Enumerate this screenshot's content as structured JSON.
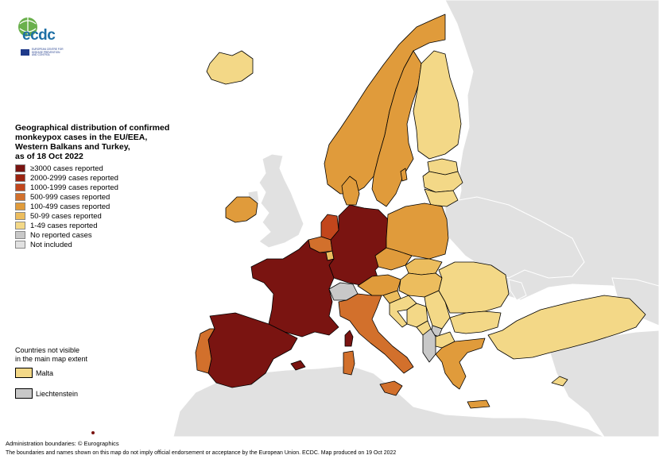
{
  "logo": {
    "text": "ecdc",
    "caption_lines": [
      "EUROPEAN CENTRE FOR",
      "DISEASE PREVENTION",
      "AND CONTROL"
    ]
  },
  "legend": {
    "title_lines": [
      "Geographical distribution of confirmed",
      "monkeypox cases in the EU/EEA,",
      "Western Balkans and Turkey,",
      "as of 18 Oct 2022"
    ],
    "items": [
      {
        "label": "≥3000 cases reported",
        "color": "#7a1411"
      },
      {
        "label": "2000-2999 cases reported",
        "color": "#9c2410"
      },
      {
        "label": "1000-1999 cases reported",
        "color": "#c2461c"
      },
      {
        "label": "500-999 cases reported",
        "color": "#d2702c"
      },
      {
        "label": "100-499 cases reported",
        "color": "#e09b3b"
      },
      {
        "label": "50-99 cases reported",
        "color": "#ecbd5e"
      },
      {
        "label": "1-49 cases reported",
        "color": "#f3d887"
      },
      {
        "label": "No reported cases",
        "color": "#c8c8c8"
      },
      {
        "label": "Not included",
        "color": "#e1e1e1"
      }
    ]
  },
  "not_visible": {
    "title_lines": [
      "Countries not visible",
      "in the main map extent"
    ],
    "items": [
      {
        "label": "Malta",
        "color": "#f3d887"
      },
      {
        "label": "Liechtenstein",
        "color": "#c8c8c8"
      }
    ]
  },
  "footer": {
    "admin": "Administration boundaries: © Eurographics",
    "disclaimer": "The boundaries and names shown on this map do not imply official endorsement or acceptance by the European Union. ECDC. Map produced on 19 Oct 2022"
  },
  "colors": {
    "ge3000": "#7a1411",
    "c2000": "#9c2410",
    "c1000": "#c2461c",
    "c500": "#d2702c",
    "c100": "#e09b3b",
    "c50": "#ecbd5e",
    "c1": "#f3d887",
    "none": "#c8c8c8",
    "not_included": "#e1e1e1"
  },
  "countries": [
    {
      "name": "Iceland",
      "class": "c1"
    },
    {
      "name": "Ireland",
      "class": "c100"
    },
    {
      "name": "Norway",
      "class": "c100"
    },
    {
      "name": "Sweden",
      "class": "c100"
    },
    {
      "name": "Finland",
      "class": "c1"
    },
    {
      "name": "Estonia",
      "class": "c1"
    },
    {
      "name": "Latvia",
      "class": "c1"
    },
    {
      "name": "Lithuania",
      "class": "c1"
    },
    {
      "name": "Denmark",
      "class": "c100"
    },
    {
      "name": "Netherlands",
      "class": "c1000"
    },
    {
      "name": "Belgium",
      "class": "c500"
    },
    {
      "name": "Luxembourg",
      "class": "c50"
    },
    {
      "name": "Germany",
      "class": "ge3000"
    },
    {
      "name": "France",
      "class": "ge3000"
    },
    {
      "name": "Spain",
      "class": "ge3000"
    },
    {
      "name": "Portugal",
      "class": "c500"
    },
    {
      "name": "Switzerland",
      "class": "none"
    },
    {
      "name": "Italy",
      "class": "c500"
    },
    {
      "name": "Austria",
      "class": "c100"
    },
    {
      "name": "Poland",
      "class": "c100"
    },
    {
      "name": "Czechia",
      "class": "c100"
    },
    {
      "name": "Slovakia",
      "class": "c50"
    },
    {
      "name": "Hungary",
      "class": "c50"
    },
    {
      "name": "Slovenia",
      "class": "c50"
    },
    {
      "name": "Croatia",
      "class": "c1"
    },
    {
      "name": "Bosnia and Herzegovina",
      "class": "c1"
    },
    {
      "name": "Serbia",
      "class": "c1"
    },
    {
      "name": "Montenegro",
      "class": "c1"
    },
    {
      "name": "Kosovo",
      "class": "none"
    },
    {
      "name": "Albania",
      "class": "none"
    },
    {
      "name": "North Macedonia",
      "class": "c1"
    },
    {
      "name": "Romania",
      "class": "c1"
    },
    {
      "name": "Bulgaria",
      "class": "c1"
    },
    {
      "name": "Greece",
      "class": "c100"
    },
    {
      "name": "Turkey",
      "class": "c1"
    },
    {
      "name": "Cyprus",
      "class": "c1"
    },
    {
      "name": "Corsica",
      "class": "ge3000"
    },
    {
      "name": "Sardinia",
      "class": "c500"
    },
    {
      "name": "Sicily",
      "class": "c500"
    },
    {
      "name": "Crete",
      "class": "c100"
    },
    {
      "name": "Balearic Islands",
      "class": "ge3000"
    },
    {
      "name": "Gotland",
      "class": "c100"
    }
  ]
}
